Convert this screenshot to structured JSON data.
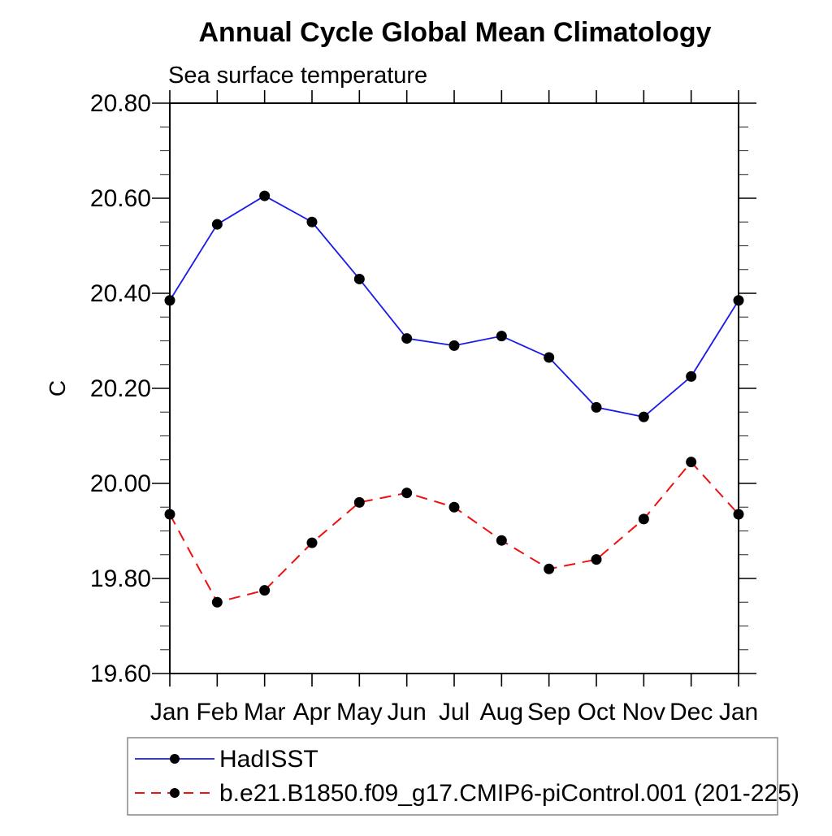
{
  "page": {
    "background_color": "#ffffff",
    "text_color": "#000000"
  },
  "chart_data": {
    "type": "line",
    "title": "Annual Cycle Global Mean Climatology",
    "subtitle": "Sea surface temperature",
    "ylabel": "C",
    "xlabel": "",
    "grid": false,
    "legend_position": "bottom-left-outside",
    "legend_border_color": "#888888",
    "categories": [
      "Jan",
      "Feb",
      "Mar",
      "Apr",
      "May",
      "Jun",
      "Jul",
      "Aug",
      "Sep",
      "Oct",
      "Nov",
      "Dec",
      "Jan"
    ],
    "y_axis": {
      "min": 19.6,
      "max": 20.8,
      "major_tick_interval": 0.2,
      "minor_tick_interval": 0.05
    },
    "yticks": [
      {
        "value": 20.8,
        "label": "20.80"
      },
      {
        "value": 20.6,
        "label": "20.60"
      },
      {
        "value": 20.4,
        "label": "20.40"
      },
      {
        "value": 20.2,
        "label": "20.20"
      },
      {
        "value": 20.0,
        "label": "20.00"
      },
      {
        "value": 19.8,
        "label": "19.80"
      },
      {
        "value": 19.6,
        "label": "19.60"
      }
    ],
    "series": [
      {
        "id": "hadisst",
        "name": "HadISST",
        "color": "#1a1ae8",
        "line_style": "solid",
        "marker": "filled-circle",
        "marker_color": "#000000",
        "values": [
          20.385,
          20.545,
          20.605,
          20.55,
          20.43,
          20.305,
          20.29,
          20.31,
          20.265,
          20.16,
          20.14,
          20.225,
          20.385
        ]
      },
      {
        "id": "cesm-picontrol",
        "name": "b.e21.B1850.f09_g17.CMIP6-piControl.001 (201-225)",
        "color": "#ee1111",
        "line_style": "dashed",
        "marker": "filled-circle",
        "marker_color": "#000000",
        "values": [
          19.935,
          19.75,
          19.775,
          19.875,
          19.96,
          19.98,
          19.95,
          19.88,
          19.82,
          19.84,
          19.925,
          20.045,
          19.935
        ]
      }
    ]
  }
}
